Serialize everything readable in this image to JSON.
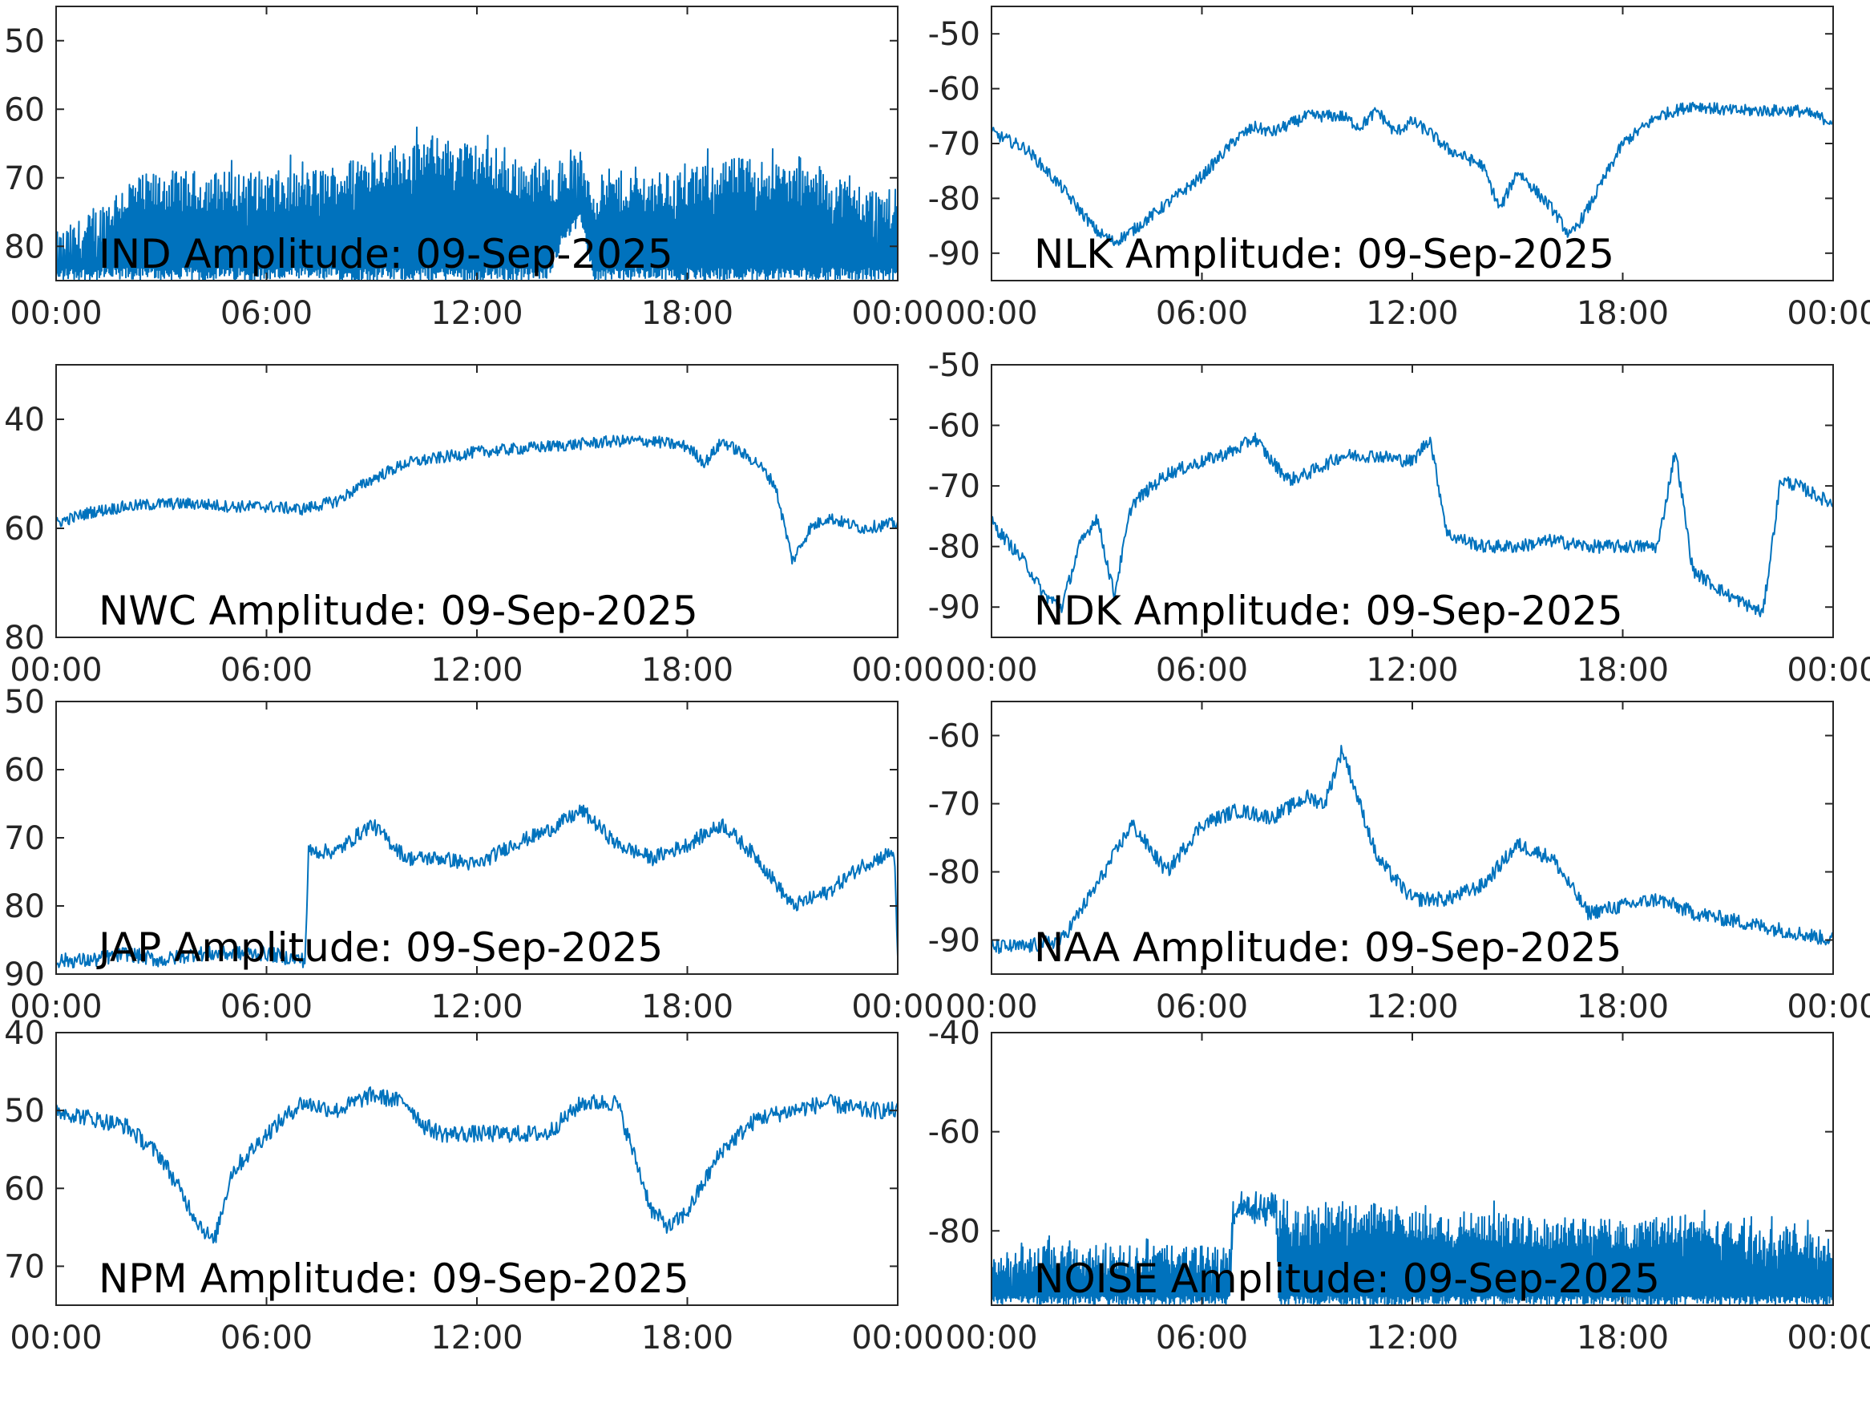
{
  "colors": {
    "series": "#0072BD",
    "axes": "#262626",
    "background": "#ffffff"
  },
  "x_tick_labels": [
    "00:00",
    "06:00",
    "12:00",
    "18:00",
    "00:00"
  ],
  "chart_data": [
    {
      "type": "line",
      "title": "IND Amplitude: 09-Sep-2025",
      "x_unit": "hours",
      "xlim": [
        0,
        24
      ],
      "ylim": [
        -85,
        -45
      ],
      "y_ticks": [
        -50,
        -60,
        -70,
        -80
      ],
      "y_tick_labels": [
        "50",
        "60",
        "70",
        "80"
      ],
      "envelope": {
        "x": [
          0,
          1,
          2,
          3,
          4,
          5,
          6,
          7,
          8,
          9,
          10,
          11,
          12,
          13,
          14,
          14.5,
          15,
          15.3,
          16,
          17,
          18,
          19,
          20,
          21,
          22,
          23,
          24
        ],
        "upper": [
          -81,
          -78,
          -73,
          -72,
          -72,
          -72,
          -72,
          -72,
          -71,
          -69,
          -68,
          -67,
          -68,
          -70,
          -71,
          -70,
          -69,
          -73,
          -72,
          -72,
          -72,
          -70,
          -70,
          -71,
          -72,
          -74,
          -75
        ],
        "lower": [
          -85,
          -85,
          -85,
          -85,
          -85,
          -85,
          -85,
          -85,
          -85,
          -85,
          -85,
          -85,
          -85,
          -85,
          -85,
          -79,
          -77,
          -85,
          -85,
          -85,
          -85,
          -85,
          -85,
          -85,
          -85,
          -85,
          -85
        ]
      }
    },
    {
      "type": "line",
      "title": "NLK Amplitude: 09-Sep-2025",
      "x_unit": "hours",
      "xlim": [
        0,
        24
      ],
      "ylim": [
        -95,
        -45
      ],
      "y_ticks": [
        -50,
        -60,
        -70,
        -80,
        -90
      ],
      "y_tick_labels": [
        "-50",
        "-60",
        "-70",
        "-80",
        "-90"
      ],
      "x": [
        0,
        1,
        2,
        3,
        3.5,
        4,
        5,
        6,
        7,
        7.5,
        8,
        9,
        10,
        10.5,
        11,
        11.5,
        12,
        12.5,
        13,
        14,
        14.5,
        15,
        16,
        16.5,
        17,
        18,
        19,
        20,
        21,
        22,
        23,
        24
      ],
      "y": [
        -68,
        -71,
        -78,
        -86,
        -88,
        -86,
        -81,
        -76,
        -69,
        -67,
        -68,
        -65,
        -65,
        -67,
        -64,
        -68,
        -66,
        -68,
        -71,
        -74,
        -82,
        -75,
        -82,
        -87,
        -82,
        -70,
        -65,
        -63,
        -64,
        -64,
        -64,
        -66
      ]
    },
    {
      "type": "line",
      "title": "NWC Amplitude: 09-Sep-2025",
      "x_unit": "hours",
      "xlim": [
        0,
        24
      ],
      "ylim": [
        -80,
        -30
      ],
      "y_ticks": [
        -40,
        -60,
        -80
      ],
      "y_tick_labels": [
        "40",
        "60",
        "80"
      ],
      "x": [
        0,
        1,
        2,
        3,
        4,
        5,
        6,
        7,
        8,
        9,
        10,
        11,
        12,
        13,
        14,
        15,
        16,
        17,
        18,
        18.5,
        19,
        20,
        20.5,
        21,
        21.5,
        22,
        22.5,
        23,
        24
      ],
      "y": [
        -59,
        -57,
        -56,
        -55.5,
        -55.5,
        -56,
        -56,
        -56.5,
        -55,
        -51,
        -48,
        -47,
        -46,
        -45.5,
        -45,
        -44.5,
        -44,
        -44,
        -45,
        -48,
        -44,
        -48,
        -52,
        -66,
        -60,
        -58,
        -59,
        -60,
        -59
      ]
    },
    {
      "type": "line",
      "title": "NDK Amplitude: 09-Sep-2025",
      "x_unit": "hours",
      "xlim": [
        0,
        24
      ],
      "ylim": [
        -95,
        -50
      ],
      "y_ticks": [
        -50,
        -60,
        -70,
        -80,
        -90
      ],
      "y_tick_labels": [
        "-50",
        "-60",
        "-70",
        "-80",
        "-90"
      ],
      "x": [
        0,
        1,
        1.5,
        2,
        2.5,
        3,
        3.5,
        4,
        5,
        6,
        7,
        7.5,
        8,
        8.5,
        9,
        10,
        11,
        12,
        12.5,
        13,
        14,
        15,
        16,
        17,
        18,
        19,
        19.5,
        20,
        21,
        22,
        22.5,
        23,
        24
      ],
      "y": [
        -76,
        -83,
        -88,
        -90,
        -80,
        -75,
        -88,
        -73,
        -68,
        -66,
        -64,
        -62,
        -66,
        -69,
        -68,
        -65,
        -65,
        -66,
        -62,
        -78,
        -80,
        -80,
        -79,
        -80,
        -80,
        -80,
        -64,
        -84,
        -88,
        -91,
        -69,
        -70,
        -73
      ]
    },
    {
      "type": "line",
      "title": "JAP Amplitude: 09-Sep-2025",
      "x_unit": "hours",
      "xlim": [
        0,
        24
      ],
      "ylim": [
        -90,
        -50
      ],
      "y_ticks": [
        -50,
        -60,
        -70,
        -80,
        -90
      ],
      "y_tick_labels": [
        "50",
        "60",
        "70",
        "80",
        "90"
      ],
      "x": [
        0,
        1,
        2,
        3,
        4,
        5,
        6,
        7.1,
        7.2,
        8,
        9,
        10,
        11,
        12,
        13,
        14,
        15,
        16,
        17,
        18,
        19,
        20,
        21,
        22,
        23,
        23.9,
        24
      ],
      "y": [
        -88,
        -88,
        -87,
        -88,
        -87,
        -87,
        -87,
        -88,
        -72,
        -72,
        -68,
        -73,
        -73,
        -74,
        -71,
        -69,
        -66,
        -71,
        -73,
        -71,
        -68,
        -73,
        -80,
        -78,
        -74,
        -72,
        -88
      ]
    },
    {
      "type": "line",
      "title": "NAA Amplitude: 09-Sep-2025",
      "x_unit": "hours",
      "xlim": [
        0,
        24
      ],
      "ylim": [
        -95,
        -55
      ],
      "y_ticks": [
        -60,
        -70,
        -80,
        -90
      ],
      "y_tick_labels": [
        "-60",
        "-70",
        "-80",
        "-90"
      ],
      "x": [
        0,
        1,
        2,
        3,
        4,
        5,
        6,
        7,
        8,
        9,
        9.5,
        10,
        10.5,
        11,
        12,
        13,
        14,
        15,
        16,
        17,
        18,
        19,
        20,
        21,
        22,
        23,
        24
      ],
      "y": [
        -91,
        -91,
        -90,
        -82,
        -73,
        -80,
        -73,
        -71,
        -72,
        -69,
        -70,
        -62,
        -70,
        -78,
        -84,
        -84,
        -82,
        -76,
        -78,
        -86,
        -85,
        -84,
        -86,
        -87,
        -88,
        -89,
        -90
      ]
    },
    {
      "type": "line",
      "title": "NPM Amplitude: 09-Sep-2025",
      "x_unit": "hours",
      "xlim": [
        0,
        24
      ],
      "ylim": [
        -75,
        -40
      ],
      "y_ticks": [
        -40,
        -50,
        -60,
        -70
      ],
      "y_tick_labels": [
        "40",
        "50",
        "60",
        "70"
      ],
      "x": [
        0,
        1,
        2,
        3,
        4,
        4.5,
        5,
        6,
        7,
        8,
        9,
        10,
        10.5,
        11,
        12,
        13,
        14,
        15,
        16,
        17,
        17.5,
        18,
        19,
        20,
        21,
        22,
        23,
        24
      ],
      "y": [
        -50,
        -51,
        -52,
        -56,
        -64,
        -67,
        -58,
        -53,
        -49,
        -50,
        -48,
        -49,
        -52,
        -53,
        -53,
        -53,
        -53,
        -49,
        -49,
        -63,
        -65,
        -63,
        -55,
        -51,
        -50,
        -49,
        -50,
        -50
      ]
    },
    {
      "type": "line",
      "title": "NOISE Amplitude: 09-Sep-2025",
      "x_unit": "hours",
      "xlim": [
        0,
        24
      ],
      "ylim": [
        -95,
        -40
      ],
      "y_ticks": [
        -40,
        -60,
        -80
      ],
      "y_tick_labels": [
        "-40",
        "-60",
        "-80"
      ],
      "envelope": {
        "x": [
          0,
          1,
          2,
          3,
          4,
          5,
          6,
          6.8,
          6.9,
          8.1,
          8.2,
          9,
          10,
          11,
          12,
          13,
          14,
          15,
          16,
          17,
          18,
          19,
          20,
          21,
          22,
          23,
          24
        ],
        "upper": [
          -87,
          -86,
          -86,
          -86,
          -86,
          -86,
          -86,
          -86,
          -75,
          -75,
          -79,
          -78,
          -78,
          -77,
          -79,
          -80,
          -79,
          -80,
          -81,
          -80,
          -81,
          -80,
          -80,
          -81,
          -82,
          -83,
          -84
        ],
        "lower": [
          -95,
          -95,
          -95,
          -95,
          -95,
          -95,
          -95,
          -95,
          -77,
          -77,
          -95,
          -95,
          -95,
          -95,
          -95,
          -95,
          -95,
          -95,
          -95,
          -95,
          -95,
          -95,
          -95,
          -95,
          -95,
          -95,
          -95
        ]
      }
    }
  ]
}
